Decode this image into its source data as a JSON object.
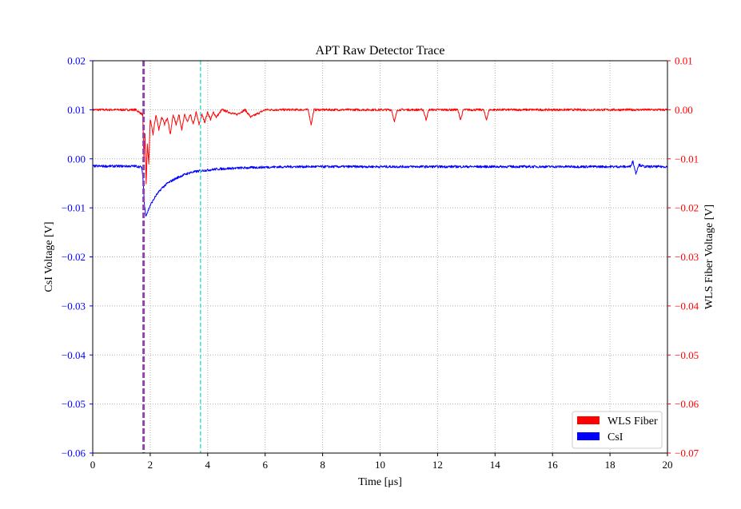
{
  "chart_data": {
    "type": "line",
    "title": "APT Raw Detector Trace",
    "xlabel": "Time [μs]",
    "ylabel_left": "CsI Voltage [V]",
    "ylabel_right": "WLS Fiber Voltage [V]",
    "xlim": [
      0,
      20
    ],
    "ylim_left": [
      -0.06,
      0.02
    ],
    "ylim_right": [
      -0.07,
      0.01
    ],
    "x_ticks": [
      "0",
      "2",
      "4",
      "6",
      "8",
      "10",
      "12",
      "14",
      "16",
      "18",
      "20"
    ],
    "y_left_ticks": [
      "0.02",
      "0.01",
      "0.00",
      "−0.01",
      "−0.02",
      "−0.03",
      "−0.04",
      "−0.05",
      "−0.06"
    ],
    "y_right_ticks": [
      "0.01",
      "0.00",
      "−0.01",
      "−0.02",
      "−0.03",
      "−0.04",
      "−0.05",
      "−0.06",
      "−0.07"
    ],
    "grid": true,
    "legend_position": "lower-right",
    "colors": {
      "wls": "#ff0000",
      "csi": "#0000ff",
      "left_axis": "#0000ff",
      "right_axis": "#ff0000",
      "marker_purple": "#8e44ad",
      "marker_cyan": "#40e0d0"
    },
    "series": [
      {
        "name": "WLS Fiber",
        "axis": "right",
        "x": [
          0,
          1.5,
          1.74,
          1.78,
          1.82,
          1.86,
          1.9,
          1.95,
          2.0,
          2.1,
          2.2,
          2.3,
          2.4,
          2.5,
          2.6,
          2.7,
          2.8,
          2.9,
          3.0,
          3.1,
          3.2,
          3.3,
          3.4,
          3.5,
          3.6,
          3.7,
          3.8,
          3.9,
          4.0,
          4.1,
          4.2,
          4.3,
          4.5,
          5.0,
          5.3,
          5.5,
          6.0,
          7.0,
          7.5,
          7.6,
          7.7,
          8.0,
          9.0,
          10.0,
          10.4,
          10.5,
          10.6,
          11.0,
          11.5,
          11.6,
          11.7,
          12.0,
          12.7,
          12.8,
          12.9,
          13.0,
          13.6,
          13.7,
          13.8,
          14.0,
          16.0,
          18.0,
          20.0
        ],
        "y": [
          0.0,
          0.0,
          -0.001,
          -0.01,
          -0.005,
          -0.015,
          -0.007,
          -0.011,
          -0.002,
          -0.005,
          -0.001,
          -0.004,
          -0.0015,
          -0.003,
          -0.0015,
          -0.005,
          -0.001,
          -0.003,
          -0.001,
          -0.004,
          -0.001,
          -0.0025,
          -0.001,
          -0.003,
          -0.0005,
          -0.003,
          -0.001,
          -0.0025,
          -0.0005,
          -0.002,
          -0.0005,
          -0.0015,
          0.0,
          -0.001,
          0.0,
          -0.0015,
          0.0,
          0.0,
          0.0,
          -0.003,
          0.0,
          0.0,
          0.0,
          0.0,
          0.0,
          -0.0025,
          0.0,
          0.0,
          0.0,
          -0.002,
          0.0,
          0.0,
          0.0,
          -0.002,
          0.0,
          0.0,
          0.0,
          -0.002,
          0.0,
          0.0,
          0.0,
          0.0,
          0.0
        ]
      },
      {
        "name": "CsI",
        "axis": "left",
        "x": [
          0,
          1.5,
          1.7,
          1.75,
          1.8,
          1.85,
          1.9,
          2.0,
          2.1,
          2.2,
          2.3,
          2.4,
          2.5,
          2.6,
          2.8,
          3.0,
          3.2,
          3.4,
          3.6,
          3.8,
          4.0,
          4.3,
          4.6,
          5.0,
          5.5,
          6.0,
          7.0,
          8.0,
          10.0,
          12.0,
          14.0,
          16.0,
          18.0,
          18.7,
          18.8,
          18.9,
          19.0,
          19.2,
          20.0
        ],
        "y": [
          -0.0015,
          -0.0015,
          -0.0017,
          -0.004,
          -0.0095,
          -0.0115,
          -0.011,
          -0.0095,
          -0.0085,
          -0.0075,
          -0.0068,
          -0.006,
          -0.0055,
          -0.005,
          -0.0043,
          -0.0037,
          -0.0032,
          -0.0028,
          -0.0026,
          -0.0024,
          -0.0023,
          -0.0021,
          -0.002,
          -0.0019,
          -0.0018,
          -0.0017,
          -0.0016,
          -0.0016,
          -0.0016,
          -0.0016,
          -0.0016,
          -0.0016,
          -0.0016,
          -0.0016,
          -0.0005,
          -0.003,
          -0.0012,
          -0.0016,
          -0.0016
        ]
      }
    ],
    "vertical_markers": [
      {
        "x": 1.77,
        "color": "#8e44ad",
        "style": "dashed-thick"
      },
      {
        "x": 3.75,
        "color": "#40e0d0",
        "style": "dashed"
      }
    ]
  }
}
